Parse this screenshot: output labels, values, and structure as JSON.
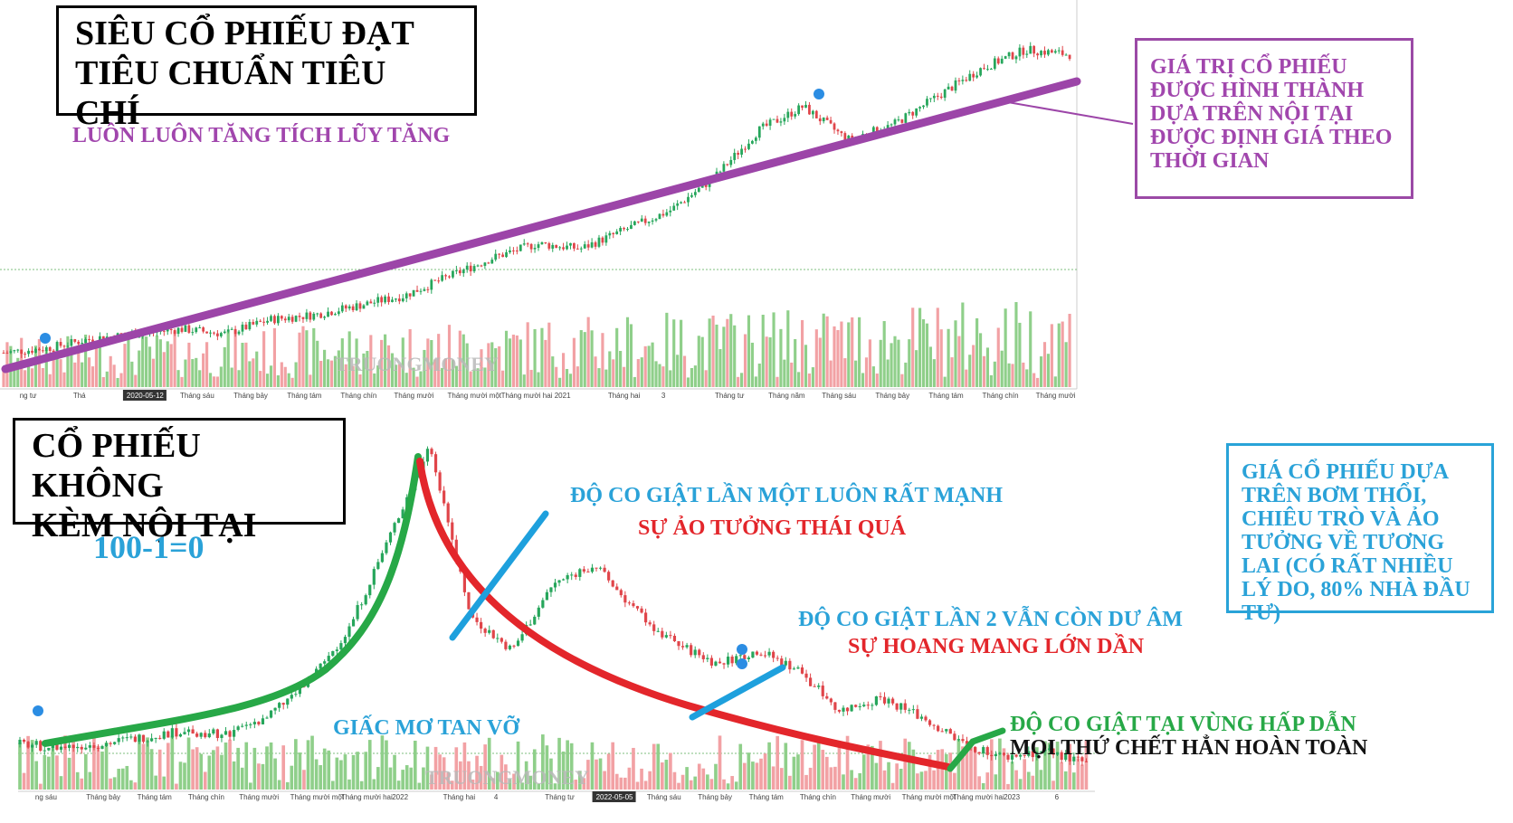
{
  "top": {
    "title_line1": "SIÊU CỔ PHIẾU ĐẠT",
    "title_line2": "TIÊU CHUẨN TIÊU CHÍ",
    "subtitle": "LUÔN LUÔN TĂNG TÍCH LŨY TĂNG",
    "note": "GIÁ TRỊ CỔ PHIẾU ĐƯỢC HÌNH THÀNH DỰA TRÊN NỘI TẠI ĐƯỢC ĐỊNH GIÁ THEO THỜI GIAN",
    "watermark": "TRUONGMONEY"
  },
  "bottom": {
    "title_line1": "CỔ PHIẾU KHÔNG",
    "title_line2": "KÈM NỘI TẠI",
    "formula": "100-1=0",
    "note": "GIÁ CỔ PHIẾU DỰA TRÊN BƠM THỔI, CHIÊU TRÒ VÀ ẢO TƯỞNG VỀ TƯƠNG LAI (CÓ RẤT NHIỀU LÝ DO, 80% NHÀ ĐẦU TƯ)",
    "label_jolt1": "ĐỘ CO GIẬT LẦN MỘT LUÔN RẤT MẠNH",
    "label_illusion": "SỰ ẢO TƯỞNG THÁI QUÁ",
    "label_jolt2": "ĐỘ CO GIẬT LẦN 2 VẪN CÒN DƯ ÂM",
    "label_confusion": "SỰ HOANG MANG LỚN DẦN",
    "label_dream": "GIẤC MƠ TAN VỠ",
    "label_jolt3": "ĐỘ CO GIẬT TẠI VÙNG HẤP DẪN",
    "label_dead": "MỌI THỨ CHẾT HẲN HOÀN TOÀN",
    "watermark": "TRUONGMONEY"
  },
  "colors": {
    "purple_line": "#9c45a8",
    "green_curve": "#27a847",
    "red_curve": "#e3262b",
    "blue_line": "#1ea0dd",
    "candle_up": "#26a65b",
    "candle_down": "#e0454a",
    "vol_up": "#8fcf8a",
    "vol_down": "#f2a1a4"
  },
  "chart_data": [
    {
      "type": "line",
      "name": "top-chart",
      "x_tick_labels": [
        "ng tư",
        "Thá",
        "2020-05-12",
        "Tháng sáu",
        "Tháng bảy",
        "Tháng tám",
        "Tháng chín",
        "Tháng mười",
        "Tháng mười một",
        "Tháng mười hai",
        "2021",
        "Tháng hai",
        "3",
        "Tháng tư",
        "Tháng năm",
        "Tháng sáu",
        "Tháng bảy",
        "Tháng tám",
        "Tháng chín",
        "Tháng mười"
      ],
      "price_path": [
        10,
        11,
        13,
        14,
        15,
        14,
        17,
        18,
        20,
        22,
        26,
        30,
        33,
        32,
        36,
        40,
        47,
        57,
        62,
        55,
        58,
        64,
        70,
        74,
        73
      ],
      "trend_line": {
        "start": 9,
        "end": 71
      }
    },
    {
      "type": "line",
      "name": "bottom-chart",
      "x_tick_labels": [
        "ng sáu",
        "Tháng bảy",
        "Tháng tám",
        "Tháng chín",
        "Tháng mười",
        "Tháng mười một",
        "Tháng mười hai",
        "2022",
        "Tháng hai",
        "4",
        "Tháng tư",
        "2022-05-05",
        "Tháng sáu",
        "Tháng bảy",
        "Tháng tám",
        "Tháng chín",
        "Tháng mười",
        "Tháng mười một",
        "Tháng mười hai",
        "2023",
        "6"
      ],
      "price_path": [
        10,
        9,
        10,
        12,
        14,
        13,
        18,
        28,
        44,
        72,
        100,
        48,
        38,
        58,
        64,
        50,
        40,
        34,
        38,
        32,
        20,
        24,
        18,
        10,
        6,
        8,
        4
      ],
      "curves": [
        "green-rise",
        "red-decline",
        "blue-jolt-1",
        "blue-jolt-2",
        "green-jolt-3"
      ]
    }
  ]
}
